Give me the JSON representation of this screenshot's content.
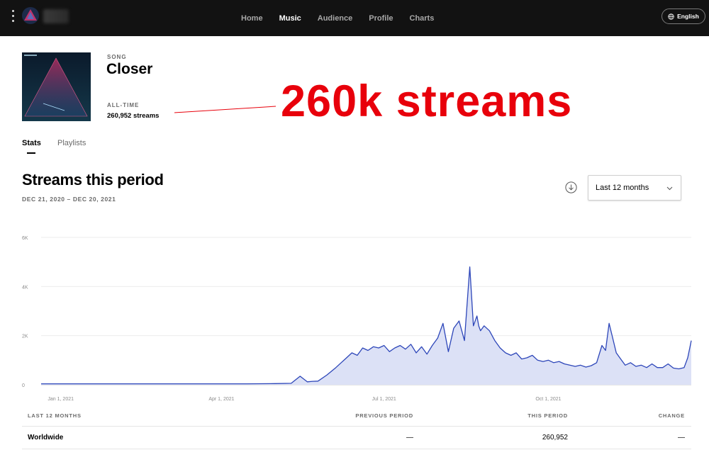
{
  "nav": {
    "items": [
      {
        "label": "Home",
        "active": false
      },
      {
        "label": "Music",
        "active": true
      },
      {
        "label": "Audience",
        "active": false
      },
      {
        "label": "Profile",
        "active": false
      },
      {
        "label": "Charts",
        "active": false
      }
    ],
    "language": "English",
    "menu_icon": "kebab-menu-icon",
    "logo_icon": "artist-logo-icon",
    "globe_icon": "globe-icon"
  },
  "song": {
    "type_label": "SONG",
    "title": "Closer",
    "alltime_label": "ALL-TIME",
    "alltime_value": "260,952 streams"
  },
  "annotation": {
    "text": "260k streams",
    "color": "#e8000b"
  },
  "tabs": [
    {
      "label": "Stats",
      "active": true
    },
    {
      "label": "Playlists",
      "active": false
    }
  ],
  "streams": {
    "title": "Streams this period",
    "date_range": "DEC 21, 2020 – DEC 20, 2021",
    "period_select": "Last 12 months",
    "download_icon": "download-icon",
    "chevron_icon": "chevron-down-icon"
  },
  "chart_data": {
    "type": "area",
    "title": "",
    "xlabel": "",
    "ylabel": "",
    "ylim": [
      0,
      6000
    ],
    "y_ticks": [
      {
        "value": 0,
        "label": "0"
      },
      {
        "value": 2000,
        "label": "2K"
      },
      {
        "value": 4000,
        "label": "4K"
      },
      {
        "value": 6000,
        "label": "6K"
      }
    ],
    "x_ticks": [
      {
        "date": "2021-01-01",
        "label": "Jan 1, 2021"
      },
      {
        "date": "2021-04-01",
        "label": "Apr 1, 2021"
      },
      {
        "date": "2021-07-01",
        "label": "Jul 1, 2021"
      },
      {
        "date": "2021-10-01",
        "label": "Oct 1, 2021"
      }
    ],
    "xlim": [
      "2020-12-21",
      "2021-12-20"
    ],
    "grid": true,
    "line_color": "#2d46b9",
    "fill_color": "#dce1f6",
    "series": [
      {
        "x": [
          "2020-12-21",
          "2021-01-15",
          "2021-02-15",
          "2021-03-15",
          "2021-04-15",
          "2021-05-01",
          "2021-05-10",
          "2021-05-15",
          "2021-05-19",
          "2021-05-22",
          "2021-05-25",
          "2021-05-30",
          "2021-06-04",
          "2021-06-07",
          "2021-06-10",
          "2021-06-13",
          "2021-06-16",
          "2021-06-19",
          "2021-06-22",
          "2021-06-25",
          "2021-06-28",
          "2021-07-01",
          "2021-07-04",
          "2021-07-07",
          "2021-07-10",
          "2021-07-13",
          "2021-07-16",
          "2021-07-19",
          "2021-07-22",
          "2021-07-25",
          "2021-07-28",
          "2021-07-31",
          "2021-08-03",
          "2021-08-06",
          "2021-08-09",
          "2021-08-12",
          "2021-08-15",
          "2021-08-18",
          "2021-08-20",
          "2021-08-22",
          "2021-08-23",
          "2021-08-24",
          "2021-08-26",
          "2021-08-29",
          "2021-09-01",
          "2021-09-04",
          "2021-09-07",
          "2021-09-10",
          "2021-09-13",
          "2021-09-16",
          "2021-09-19",
          "2021-09-22",
          "2021-09-25",
          "2021-09-28",
          "2021-10-01",
          "2021-10-04",
          "2021-10-07",
          "2021-10-10",
          "2021-10-13",
          "2021-10-16",
          "2021-10-19",
          "2021-10-22",
          "2021-10-25",
          "2021-10-28",
          "2021-10-31",
          "2021-11-02",
          "2021-11-04",
          "2021-11-06",
          "2021-11-08",
          "2021-11-10",
          "2021-11-13",
          "2021-11-16",
          "2021-11-19",
          "2021-11-22",
          "2021-11-25",
          "2021-11-28",
          "2021-12-01",
          "2021-12-04",
          "2021-12-07",
          "2021-12-10",
          "2021-12-13",
          "2021-12-16",
          "2021-12-18",
          "2021-12-20"
        ],
        "y": [
          40,
          40,
          40,
          40,
          40,
          50,
          60,
          350,
          120,
          140,
          150,
          400,
          700,
          900,
          1100,
          1300,
          1200,
          1500,
          1400,
          1550,
          1500,
          1600,
          1350,
          1500,
          1600,
          1450,
          1650,
          1300,
          1550,
          1250,
          1600,
          1900,
          2500,
          1350,
          2300,
          2600,
          1800,
          4800,
          2400,
          2800,
          2400,
          2200,
          2400,
          2200,
          1800,
          1500,
          1300,
          1200,
          1300,
          1050,
          1100,
          1200,
          1000,
          950,
          1000,
          900,
          950,
          850,
          800,
          750,
          800,
          720,
          780,
          900,
          1600,
          1400,
          2500,
          1900,
          1300,
          1100,
          800,
          900,
          750,
          800,
          700,
          850,
          700,
          700,
          850,
          680,
          650,
          700,
          1100,
          1800
        ]
      }
    ]
  },
  "table": {
    "headers": {
      "label": "LAST 12 MONTHS",
      "prev": "PREVIOUS PERIOD",
      "this": "THIS PERIOD",
      "change": "CHANGE"
    },
    "rows": [
      {
        "name": "Worldwide",
        "prev": "—",
        "this": "260,952",
        "change": "—"
      }
    ]
  }
}
